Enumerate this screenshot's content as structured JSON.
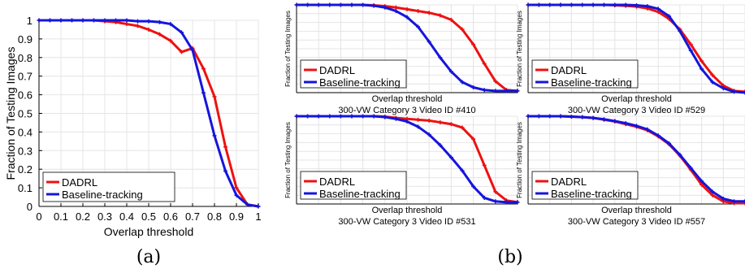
{
  "colors": {
    "dadrl": "#ee1111",
    "baseline": "#1515dd",
    "grid": "#e4e4e4",
    "axis": "#000000"
  },
  "panel_a": {
    "caption": "(a)"
  },
  "panel_b": {
    "caption": "(b)"
  },
  "chart_data": [
    {
      "type": "line",
      "xlabel": "Overlap threshold",
      "ylabel": "Fraction of Testing Images",
      "xlim": [
        0,
        1
      ],
      "ylim": [
        0,
        1
      ],
      "xticks": [
        "0",
        "0.1",
        "0.2",
        "0.3",
        "0.4",
        "0.5",
        "0.6",
        "0.7",
        "0.8",
        "0.9",
        "1"
      ],
      "yticks": [
        "0",
        "0.1",
        "0.2",
        "0.3",
        "0.4",
        "0.5",
        "0.6",
        "0.7",
        "0.8",
        "0.9",
        "1"
      ],
      "grid": true,
      "legend": "bottom-left",
      "x": [
        0,
        0.05,
        0.1,
        0.15,
        0.2,
        0.25,
        0.3,
        0.35,
        0.4,
        0.45,
        0.5,
        0.55,
        0.6,
        0.65,
        0.7,
        0.75,
        0.8,
        0.85,
        0.9,
        0.95,
        1.0
      ],
      "series": [
        {
          "name": "DADRL",
          "values": [
            1,
            1,
            1,
            1,
            1,
            1,
            0.995,
            0.99,
            0.98,
            0.97,
            0.95,
            0.925,
            0.89,
            0.83,
            0.85,
            0.74,
            0.59,
            0.32,
            0.1,
            0.01,
            0
          ]
        },
        {
          "name": "Baseline-tracking",
          "values": [
            1,
            1,
            1,
            1,
            1,
            1,
            1,
            1,
            1,
            0.995,
            0.995,
            0.99,
            0.98,
            0.935,
            0.84,
            0.61,
            0.38,
            0.19,
            0.06,
            0.01,
            0
          ]
        }
      ]
    },
    {
      "type": "line",
      "title": "300-VW Category 3 Video ID #410",
      "xlabel": "Overlap threshold",
      "ylabel": "Fraction of Testing Images",
      "xlim": [
        0,
        1
      ],
      "ylim": [
        0,
        1
      ],
      "grid": true,
      "legend": "bottom-left",
      "x": [
        0,
        0.05,
        0.1,
        0.15,
        0.2,
        0.25,
        0.3,
        0.35,
        0.4,
        0.45,
        0.5,
        0.55,
        0.6,
        0.65,
        0.7,
        0.75,
        0.8,
        0.85,
        0.9,
        0.95,
        1.0
      ],
      "series": [
        {
          "name": "DADRL",
          "values": [
            1,
            1,
            1,
            1,
            1,
            1,
            1,
            0.995,
            0.985,
            0.97,
            0.95,
            0.93,
            0.91,
            0.88,
            0.83,
            0.72,
            0.55,
            0.33,
            0.13,
            0.03,
            0.02
          ]
        },
        {
          "name": "Baseline-tracking",
          "values": [
            1,
            1,
            1,
            1,
            1,
            1,
            1,
            0.99,
            0.97,
            0.93,
            0.86,
            0.75,
            0.58,
            0.4,
            0.24,
            0.12,
            0.06,
            0.03,
            0.02,
            0.02,
            0.02
          ]
        }
      ]
    },
    {
      "type": "line",
      "title": "300-VW Category 3 Video ID #529",
      "xlabel": "Overlap threshold",
      "ylabel": "Fraction of Testing Images",
      "xlim": [
        0,
        1
      ],
      "ylim": [
        0,
        1
      ],
      "grid": true,
      "legend": "bottom-left",
      "x": [
        0,
        0.05,
        0.1,
        0.15,
        0.2,
        0.25,
        0.3,
        0.35,
        0.4,
        0.45,
        0.5,
        0.55,
        0.6,
        0.65,
        0.7,
        0.75,
        0.8,
        0.85,
        0.9,
        0.95,
        1.0
      ],
      "series": [
        {
          "name": "DADRL",
          "values": [
            1,
            1,
            1,
            1,
            1,
            1,
            1,
            1,
            0.995,
            0.99,
            0.98,
            0.96,
            0.92,
            0.84,
            0.72,
            0.55,
            0.36,
            0.2,
            0.08,
            0.02,
            0.01
          ]
        },
        {
          "name": "Baseline-tracking",
          "values": [
            1,
            1,
            1,
            1,
            1,
            1,
            1,
            1,
            1,
            1,
            0.995,
            0.985,
            0.955,
            0.87,
            0.7,
            0.48,
            0.27,
            0.12,
            0.05,
            0.01,
            0
          ]
        }
      ]
    },
    {
      "type": "line",
      "title": "300-VW Category 3 Video ID #531",
      "xlabel": "Overlap threshold",
      "ylabel": "Fraction of Testing Images",
      "xlim": [
        0,
        1
      ],
      "ylim": [
        0,
        1
      ],
      "grid": true,
      "legend": "bottom-left",
      "x": [
        0,
        0.05,
        0.1,
        0.15,
        0.2,
        0.25,
        0.3,
        0.35,
        0.4,
        0.45,
        0.5,
        0.55,
        0.6,
        0.65,
        0.7,
        0.75,
        0.8,
        0.85,
        0.9,
        0.95,
        1.0
      ],
      "series": [
        {
          "name": "DADRL",
          "values": [
            1,
            1,
            1,
            1,
            1,
            1,
            1,
            1,
            0.995,
            0.98,
            0.97,
            0.96,
            0.95,
            0.93,
            0.91,
            0.87,
            0.74,
            0.44,
            0.14,
            0.04,
            0.02
          ]
        },
        {
          "name": "Baseline-tracking",
          "values": [
            1,
            1,
            1,
            1,
            1,
            1,
            1,
            1,
            0.99,
            0.97,
            0.94,
            0.88,
            0.79,
            0.67,
            0.53,
            0.38,
            0.2,
            0.07,
            0.03,
            0.02,
            0.02
          ]
        }
      ]
    },
    {
      "type": "line",
      "title": "300-VW Category 3 Video ID #557",
      "xlabel": "Overlap threshold",
      "ylabel": "Fraction of Testing Images",
      "xlim": [
        0,
        1
      ],
      "ylim": [
        0,
        1
      ],
      "grid": true,
      "legend": "bottom-left",
      "x": [
        0,
        0.05,
        0.1,
        0.15,
        0.2,
        0.25,
        0.3,
        0.35,
        0.4,
        0.45,
        0.5,
        0.55,
        0.6,
        0.65,
        0.7,
        0.75,
        0.8,
        0.85,
        0.9,
        0.95,
        1.0
      ],
      "series": [
        {
          "name": "DADRL",
          "values": [
            1,
            1,
            1,
            1,
            0.995,
            0.99,
            0.98,
            0.96,
            0.94,
            0.91,
            0.88,
            0.84,
            0.77,
            0.68,
            0.55,
            0.39,
            0.22,
            0.1,
            0.03,
            0.01,
            0.01
          ]
        },
        {
          "name": "Baseline-tracking",
          "values": [
            1,
            1,
            1,
            1,
            0.995,
            0.99,
            0.98,
            0.965,
            0.945,
            0.92,
            0.89,
            0.85,
            0.78,
            0.69,
            0.56,
            0.41,
            0.26,
            0.14,
            0.06,
            0.03,
            0.03
          ]
        }
      ]
    }
  ]
}
